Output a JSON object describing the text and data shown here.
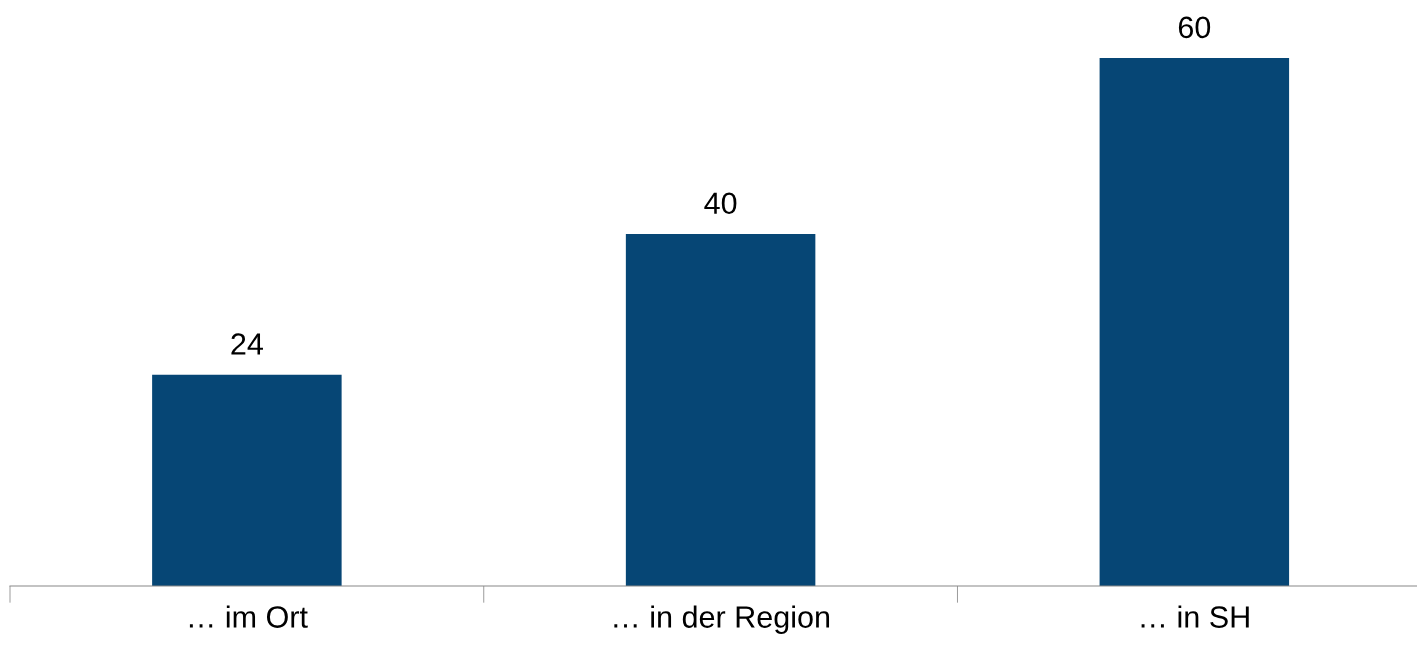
{
  "chart_data": {
    "type": "bar",
    "categories": [
      "… im Ort",
      "… in der Region",
      "… in SH"
    ],
    "values": [
      24,
      40,
      60
    ],
    "color": "#064675",
    "data_labels": true,
    "grid": false,
    "tick_labels": "x"
  }
}
